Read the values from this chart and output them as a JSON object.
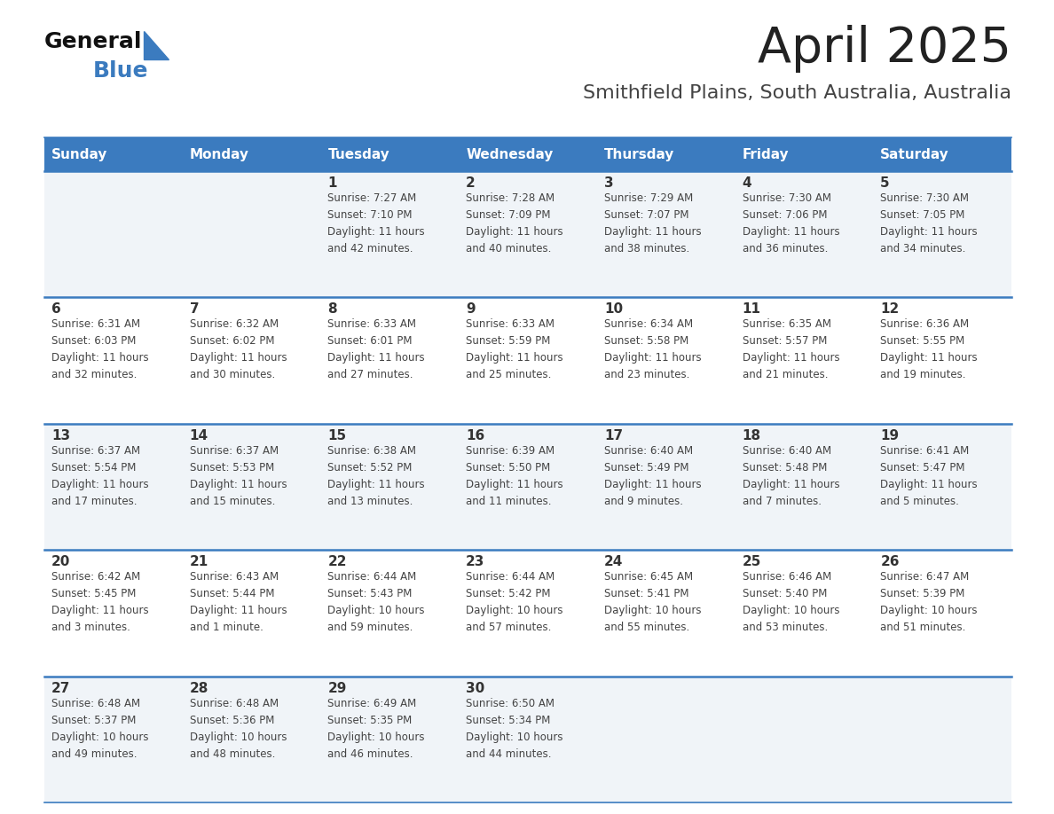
{
  "title": "April 2025",
  "subtitle": "Smithfield Plains, South Australia, Australia",
  "header_bg_color": "#3b7bbf",
  "header_text_color": "#ffffff",
  "cell_bg_row0": "#f0f4f8",
  "cell_bg_row1": "#ffffff",
  "cell_bg_row2": "#f0f4f8",
  "cell_bg_row3": "#ffffff",
  "cell_bg_row4": "#f0f4f8",
  "row_line_color": "#3b7bbf",
  "text_color": "#333333",
  "info_color": "#444444",
  "day_headers": [
    "Sunday",
    "Monday",
    "Tuesday",
    "Wednesday",
    "Thursday",
    "Friday",
    "Saturday"
  ],
  "calendar": [
    [
      {
        "day": "",
        "info": ""
      },
      {
        "day": "",
        "info": ""
      },
      {
        "day": "1",
        "info": "Sunrise: 7:27 AM\nSunset: 7:10 PM\nDaylight: 11 hours\nand 42 minutes."
      },
      {
        "day": "2",
        "info": "Sunrise: 7:28 AM\nSunset: 7:09 PM\nDaylight: 11 hours\nand 40 minutes."
      },
      {
        "day": "3",
        "info": "Sunrise: 7:29 AM\nSunset: 7:07 PM\nDaylight: 11 hours\nand 38 minutes."
      },
      {
        "day": "4",
        "info": "Sunrise: 7:30 AM\nSunset: 7:06 PM\nDaylight: 11 hours\nand 36 minutes."
      },
      {
        "day": "5",
        "info": "Sunrise: 7:30 AM\nSunset: 7:05 PM\nDaylight: 11 hours\nand 34 minutes."
      }
    ],
    [
      {
        "day": "6",
        "info": "Sunrise: 6:31 AM\nSunset: 6:03 PM\nDaylight: 11 hours\nand 32 minutes."
      },
      {
        "day": "7",
        "info": "Sunrise: 6:32 AM\nSunset: 6:02 PM\nDaylight: 11 hours\nand 30 minutes."
      },
      {
        "day": "8",
        "info": "Sunrise: 6:33 AM\nSunset: 6:01 PM\nDaylight: 11 hours\nand 27 minutes."
      },
      {
        "day": "9",
        "info": "Sunrise: 6:33 AM\nSunset: 5:59 PM\nDaylight: 11 hours\nand 25 minutes."
      },
      {
        "day": "10",
        "info": "Sunrise: 6:34 AM\nSunset: 5:58 PM\nDaylight: 11 hours\nand 23 minutes."
      },
      {
        "day": "11",
        "info": "Sunrise: 6:35 AM\nSunset: 5:57 PM\nDaylight: 11 hours\nand 21 minutes."
      },
      {
        "day": "12",
        "info": "Sunrise: 6:36 AM\nSunset: 5:55 PM\nDaylight: 11 hours\nand 19 minutes."
      }
    ],
    [
      {
        "day": "13",
        "info": "Sunrise: 6:37 AM\nSunset: 5:54 PM\nDaylight: 11 hours\nand 17 minutes."
      },
      {
        "day": "14",
        "info": "Sunrise: 6:37 AM\nSunset: 5:53 PM\nDaylight: 11 hours\nand 15 minutes."
      },
      {
        "day": "15",
        "info": "Sunrise: 6:38 AM\nSunset: 5:52 PM\nDaylight: 11 hours\nand 13 minutes."
      },
      {
        "day": "16",
        "info": "Sunrise: 6:39 AM\nSunset: 5:50 PM\nDaylight: 11 hours\nand 11 minutes."
      },
      {
        "day": "17",
        "info": "Sunrise: 6:40 AM\nSunset: 5:49 PM\nDaylight: 11 hours\nand 9 minutes."
      },
      {
        "day": "18",
        "info": "Sunrise: 6:40 AM\nSunset: 5:48 PM\nDaylight: 11 hours\nand 7 minutes."
      },
      {
        "day": "19",
        "info": "Sunrise: 6:41 AM\nSunset: 5:47 PM\nDaylight: 11 hours\nand 5 minutes."
      }
    ],
    [
      {
        "day": "20",
        "info": "Sunrise: 6:42 AM\nSunset: 5:45 PM\nDaylight: 11 hours\nand 3 minutes."
      },
      {
        "day": "21",
        "info": "Sunrise: 6:43 AM\nSunset: 5:44 PM\nDaylight: 11 hours\nand 1 minute."
      },
      {
        "day": "22",
        "info": "Sunrise: 6:44 AM\nSunset: 5:43 PM\nDaylight: 10 hours\nand 59 minutes."
      },
      {
        "day": "23",
        "info": "Sunrise: 6:44 AM\nSunset: 5:42 PM\nDaylight: 10 hours\nand 57 minutes."
      },
      {
        "day": "24",
        "info": "Sunrise: 6:45 AM\nSunset: 5:41 PM\nDaylight: 10 hours\nand 55 minutes."
      },
      {
        "day": "25",
        "info": "Sunrise: 6:46 AM\nSunset: 5:40 PM\nDaylight: 10 hours\nand 53 minutes."
      },
      {
        "day": "26",
        "info": "Sunrise: 6:47 AM\nSunset: 5:39 PM\nDaylight: 10 hours\nand 51 minutes."
      }
    ],
    [
      {
        "day": "27",
        "info": "Sunrise: 6:48 AM\nSunset: 5:37 PM\nDaylight: 10 hours\nand 49 minutes."
      },
      {
        "day": "28",
        "info": "Sunrise: 6:48 AM\nSunset: 5:36 PM\nDaylight: 10 hours\nand 48 minutes."
      },
      {
        "day": "29",
        "info": "Sunrise: 6:49 AM\nSunset: 5:35 PM\nDaylight: 10 hours\nand 46 minutes."
      },
      {
        "day": "30",
        "info": "Sunrise: 6:50 AM\nSunset: 5:34 PM\nDaylight: 10 hours\nand 44 minutes."
      },
      {
        "day": "",
        "info": ""
      },
      {
        "day": "",
        "info": ""
      },
      {
        "day": "",
        "info": ""
      }
    ]
  ],
  "logo_general_color": "#111111",
  "logo_blue_color": "#3b7bbf",
  "logo_triangle_color": "#3b7bbf"
}
